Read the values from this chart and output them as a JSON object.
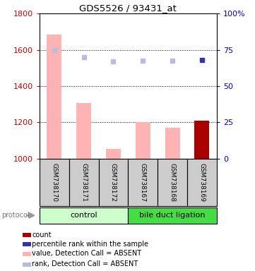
{
  "title": "GDS5526 / 93431_at",
  "samples": [
    "GSM738170",
    "GSM738171",
    "GSM738172",
    "GSM738167",
    "GSM738168",
    "GSM738169"
  ],
  "bar_values": [
    1685,
    1305,
    1055,
    1200,
    1170,
    1210
  ],
  "bar_colors": [
    "#ffb3b3",
    "#ffb3b3",
    "#ffb3b3",
    "#ffb3b3",
    "#ffb3b3",
    "#aa0000"
  ],
  "rank_values": [
    1600,
    1560,
    1535,
    1540,
    1540,
    1542
  ],
  "rank_colors": [
    "#bbbbdd",
    "#bbbbdd",
    "#bbbbdd",
    "#bbbbdd",
    "#bbbbdd",
    "#3333aa"
  ],
  "ylim_left": [
    1000,
    1800
  ],
  "ylim_right": [
    0,
    100
  ],
  "yticks_left": [
    1000,
    1200,
    1400,
    1600,
    1800
  ],
  "yticks_right": [
    0,
    25,
    50,
    75,
    100
  ],
  "left_tick_color": "#cc0000",
  "right_tick_color": "#0000cc",
  "ctrl_color": "#ccffcc",
  "bdl_color": "#44dd44",
  "sample_box_color": "#cccccc",
  "legend_colors": [
    "#aa0000",
    "#3333aa",
    "#ffb3b3",
    "#bbbbdd"
  ],
  "legend_labels": [
    "count",
    "percentile rank within the sample",
    "value, Detection Call = ABSENT",
    "rank, Detection Call = ABSENT"
  ],
  "bar_width": 0.5,
  "right_labels": [
    "0",
    "25",
    "50",
    "75",
    "100%"
  ]
}
